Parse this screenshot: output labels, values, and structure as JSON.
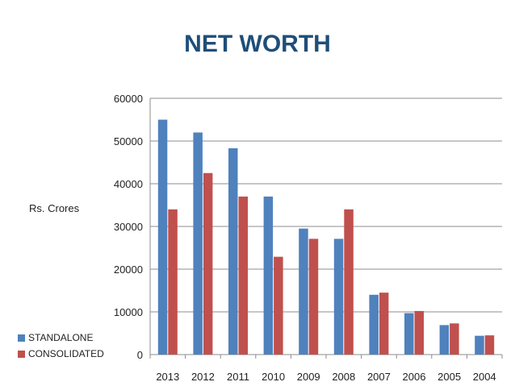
{
  "chart_data": {
    "type": "bar",
    "title": "NET WORTH",
    "xlabel": "",
    "ylabel": "Rs. Crores",
    "categories": [
      "2013",
      "2012",
      "2011",
      "2010",
      "2009",
      "2008",
      "2007",
      "2006",
      "2005",
      "2004"
    ],
    "series": [
      {
        "name": "STANDALONE",
        "color": "#4f81bd",
        "values": [
          55000,
          52000,
          48300,
          37000,
          29500,
          27100,
          14000,
          9700,
          6900,
          4400
        ]
      },
      {
        "name": "CONSOLIDATED",
        "color": "#c0504d",
        "values": [
          34000,
          42500,
          37000,
          22900,
          27100,
          34000,
          14500,
          10200,
          7300,
          4500
        ]
      }
    ],
    "ylim": [
      0,
      60000
    ],
    "yticks": [
      "0",
      "10000",
      "20000",
      "30000",
      "40000",
      "50000",
      "60000"
    ],
    "grid": true,
    "legend": "bottom-left"
  }
}
